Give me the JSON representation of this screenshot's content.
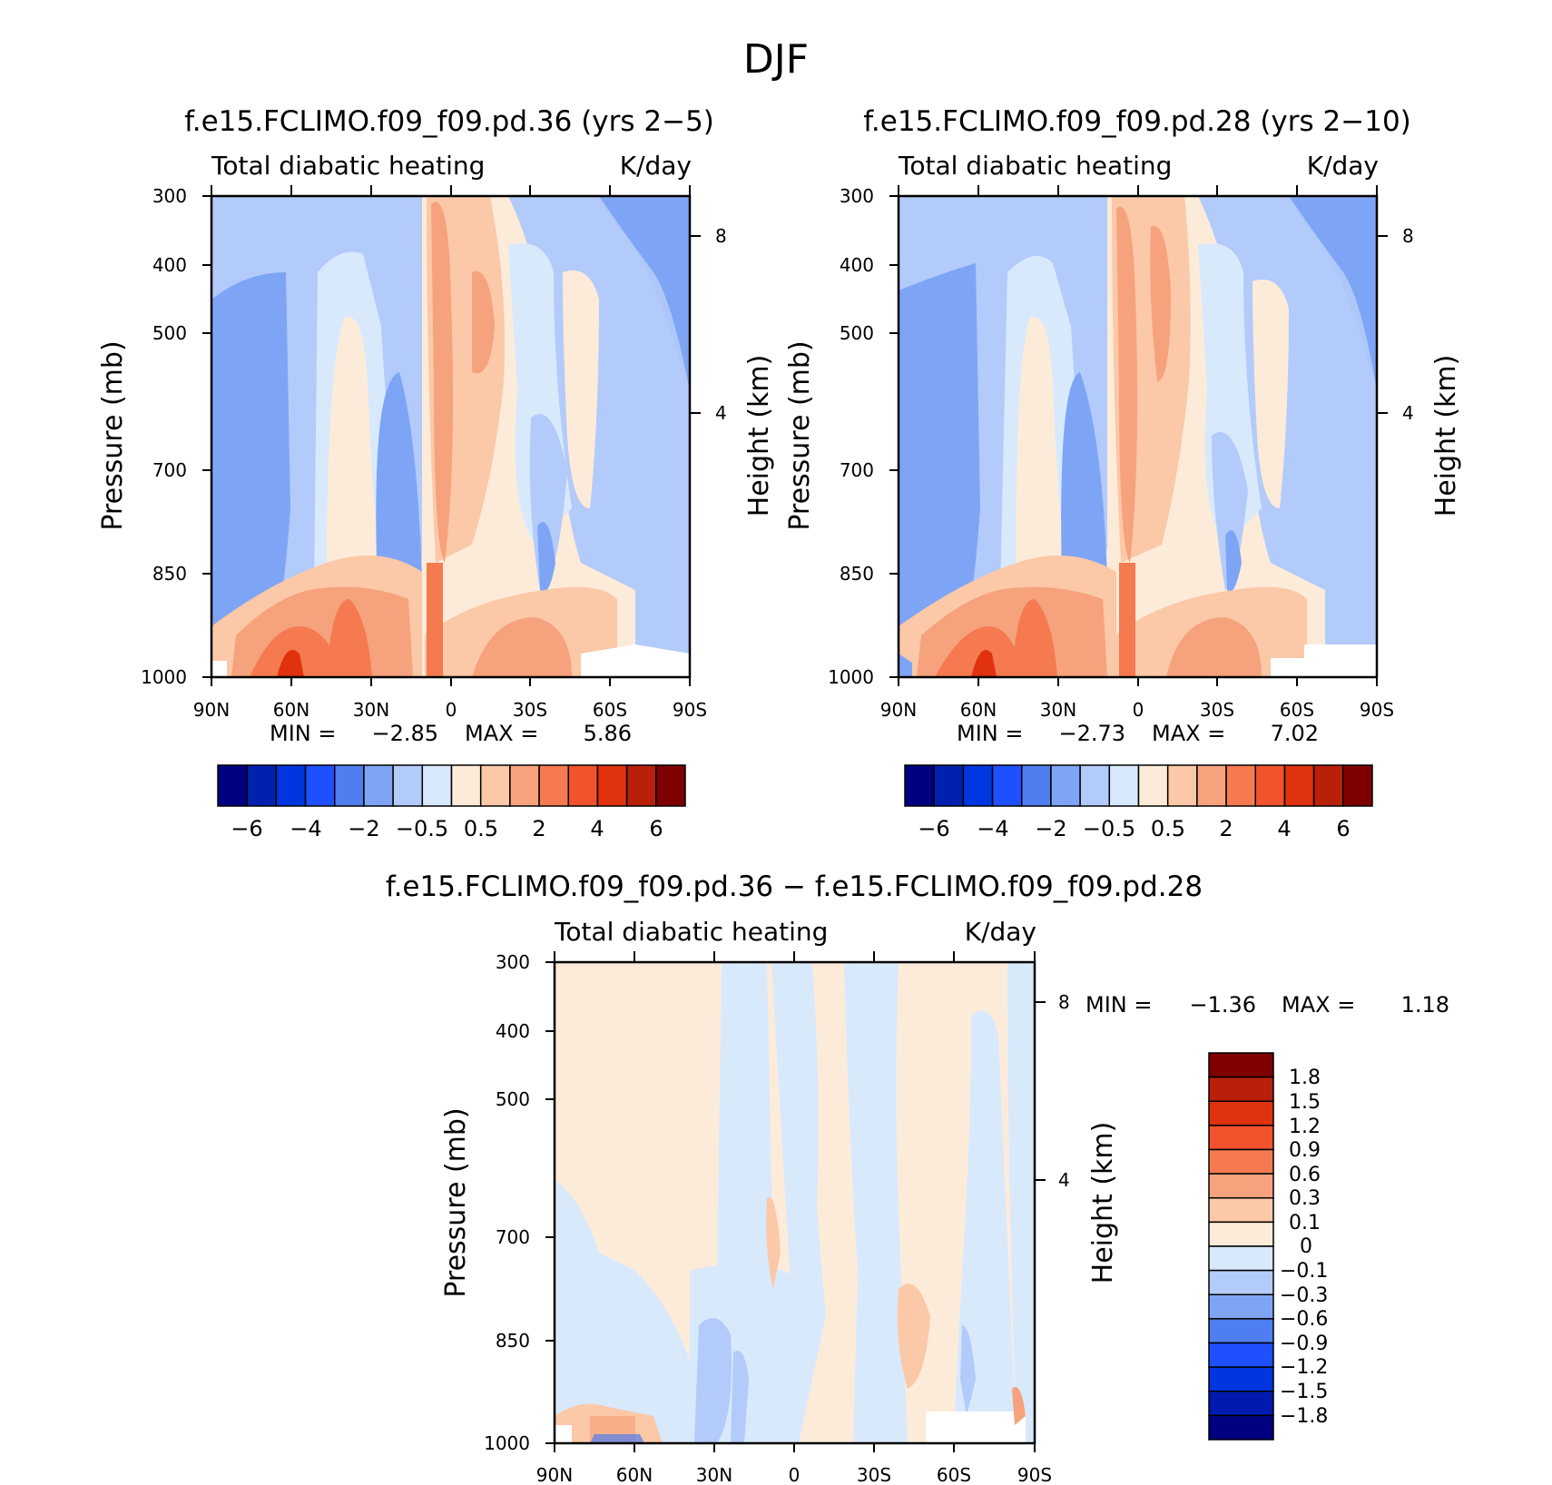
{
  "figure_title": "DJF",
  "colors": {
    "main_scale": [
      "#000080",
      "#0021b0",
      "#0036e0",
      "#1e50ff",
      "#4f7ef0",
      "#7ea5f5",
      "#b3cbfa",
      "#d9e9fc",
      "#fdebd9",
      "#fbc8a8",
      "#f6a27c",
      "#f57a50",
      "#f2522c",
      "#e0320f",
      "#b8200a",
      "#7f0000"
    ],
    "diff_scale": [
      "#000080",
      "#001ab0",
      "#0036e0",
      "#1e50ff",
      "#4f7ef0",
      "#7ea5f5",
      "#b3cbfa",
      "#d9e9fc",
      "#fdebd9",
      "#fbc8a8",
      "#f6a27c",
      "#f57a50",
      "#f2522c",
      "#e0320f",
      "#b8200a",
      "#7f0000"
    ]
  },
  "chart_data": [
    {
      "type": "heatmap",
      "title": "f.e15.FCLIMO.f09_f09.pd.36 (yrs 2−5)",
      "subtitle_left": "Total diabatic heating",
      "subtitle_right": "K/day",
      "xlabel": "",
      "ylabel": "Pressure (mb)",
      "y2label": "Height (km)",
      "x_ticks": [
        "90N",
        "60N",
        "30N",
        "0",
        "30S",
        "60S",
        "90S"
      ],
      "y_ticks": [
        "300",
        "400",
        "500",
        "700",
        "850",
        "1000"
      ],
      "y2_ticks": [
        "8",
        "4"
      ],
      "ylim": [
        1000,
        300
      ],
      "log_scale_y": true,
      "min_label": "MIN =",
      "min_value": "−2.85",
      "max_label": "MAX =",
      "max_value": "5.86",
      "colorbar_labels": [
        "−6",
        "−4",
        "−2",
        "−0.5",
        "0.5",
        "2",
        "4",
        "6"
      ]
    },
    {
      "type": "heatmap",
      "title": "f.e15.FCLIMO.f09_f09.pd.28 (yrs 2−10)",
      "subtitle_left": "Total diabatic heating",
      "subtitle_right": "K/day",
      "xlabel": "",
      "ylabel": "Pressure (mb)",
      "y2label": "Height (km)",
      "x_ticks": [
        "90N",
        "60N",
        "30N",
        "0",
        "30S",
        "60S",
        "90S"
      ],
      "y_ticks": [
        "300",
        "400",
        "500",
        "700",
        "850",
        "1000"
      ],
      "y2_ticks": [
        "8",
        "4"
      ],
      "ylim": [
        1000,
        300
      ],
      "log_scale_y": true,
      "min_label": "MIN =",
      "min_value": "−2.73",
      "max_label": "MAX =",
      "max_value": "7.02",
      "colorbar_labels": [
        "−6",
        "−4",
        "−2",
        "−0.5",
        "0.5",
        "2",
        "4",
        "6"
      ]
    },
    {
      "type": "heatmap",
      "title": "f.e15.FCLIMO.f09_f09.pd.36 − f.e15.FCLIMO.f09_f09.pd.28",
      "subtitle_left": "Total diabatic heating",
      "subtitle_right": "K/day",
      "xlabel": "",
      "ylabel": "Pressure (mb)",
      "y2label": "Height (km)",
      "x_ticks": [
        "90N",
        "60N",
        "30N",
        "0",
        "30S",
        "60S",
        "90S"
      ],
      "y_ticks": [
        "300",
        "400",
        "500",
        "700",
        "850",
        "1000"
      ],
      "y2_ticks": [
        "8",
        "4"
      ],
      "ylim": [
        1000,
        300
      ],
      "log_scale_y": true,
      "min_label": "MIN =",
      "min_value": "−1.36",
      "max_label": "MAX =",
      "max_value": "1.18",
      "colorbar_labels": [
        "1.8",
        "1.5",
        "1.2",
        "0.9",
        "0.6",
        "0.3",
        "0.1",
        "0",
        "−0.1",
        "−0.3",
        "−0.6",
        "−0.9",
        "−1.2",
        "−1.5",
        "−1.8"
      ]
    }
  ]
}
